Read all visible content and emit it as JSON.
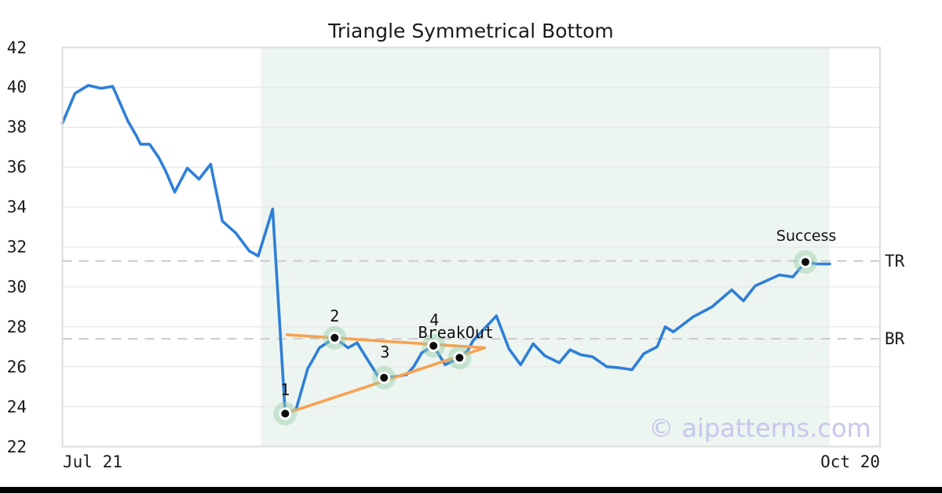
{
  "chart_data": {
    "type": "line",
    "title": "Triangle Symmetrical Bottom",
    "watermark": "© aipatterns.com",
    "x_axis": {
      "start_label": "Jul 21",
      "end_label": "Oct 20",
      "span_days": 91
    },
    "y_axis": {
      "min": 22,
      "max": 42,
      "tick_step": 2,
      "ticks": [
        42,
        40,
        38,
        36,
        34,
        32,
        30,
        28,
        26,
        24,
        22
      ]
    },
    "colors": {
      "price_line": "#2e7fd8",
      "trend_line": "#f6a152",
      "pattern_zone": "#edf5f0",
      "level_dash": "#cdcdcd",
      "grid": "#e8e8e8",
      "border": "#dcdcdc",
      "marker_halo": "rgba(151,206,169,0.45)",
      "marker_dot": "#0d0d0d"
    },
    "pattern_zone": {
      "start_day": 22.1,
      "end_day": 85.4
    },
    "levels": [
      {
        "label": "TR",
        "value": 31.3
      },
      {
        "label": "BR",
        "value": 27.4
      }
    ],
    "trendlines": [
      {
        "from": [
          25.0,
          27.6
        ],
        "to": [
          47.0,
          26.95
        ]
      },
      {
        "from": [
          24.8,
          23.65
        ],
        "to": [
          47.0,
          26.95
        ]
      }
    ],
    "series": [
      {
        "name": "price",
        "points": [
          [
            0,
            38.2
          ],
          [
            1.4,
            39.7
          ],
          [
            2.9,
            40.1
          ],
          [
            4.3,
            39.95
          ],
          [
            5.6,
            40.05
          ],
          [
            7.3,
            38.3
          ],
          [
            8.2,
            37.6
          ],
          [
            8.7,
            37.15
          ],
          [
            9.7,
            37.15
          ],
          [
            10.7,
            36.5
          ],
          [
            11.5,
            35.8
          ],
          [
            12.5,
            34.75
          ],
          [
            13.9,
            35.95
          ],
          [
            15.2,
            35.4
          ],
          [
            16.5,
            36.15
          ],
          [
            17.8,
            33.3
          ],
          [
            19.3,
            32.7
          ],
          [
            20.8,
            31.8
          ],
          [
            21.8,
            31.55
          ],
          [
            23.4,
            33.9
          ],
          [
            24.8,
            23.65
          ],
          [
            26,
            23.85
          ],
          [
            27.3,
            25.9
          ],
          [
            28,
            26.45
          ],
          [
            28.6,
            26.95
          ],
          [
            29.3,
            27.15
          ],
          [
            30.3,
            27.45
          ],
          [
            31.8,
            26.95
          ],
          [
            32.8,
            27.2
          ],
          [
            33.9,
            26.4
          ],
          [
            35.1,
            25.55
          ],
          [
            35.8,
            25.45
          ],
          [
            37,
            25.5
          ],
          [
            38.3,
            25.6
          ],
          [
            39.1,
            26
          ],
          [
            40,
            26.7
          ],
          [
            41.3,
            27.05
          ],
          [
            42.6,
            26.1
          ],
          [
            44.2,
            26.45
          ],
          [
            45.1,
            26.8
          ],
          [
            45.7,
            27.3
          ],
          [
            48.3,
            28.55
          ],
          [
            49.7,
            26.9
          ],
          [
            51,
            26.1
          ],
          [
            52.4,
            27.15
          ],
          [
            53.7,
            26.55
          ],
          [
            55.3,
            26.2
          ],
          [
            56.5,
            26.85
          ],
          [
            57.7,
            26.6
          ],
          [
            59,
            26.5
          ],
          [
            60.6,
            26
          ],
          [
            61.9,
            25.95
          ],
          [
            63.4,
            25.85
          ],
          [
            64.7,
            26.65
          ],
          [
            66.2,
            27
          ],
          [
            67.1,
            28
          ],
          [
            68,
            27.75
          ],
          [
            70.2,
            28.5
          ],
          [
            72.3,
            29
          ],
          [
            74.5,
            29.85
          ],
          [
            75.8,
            29.3
          ],
          [
            77.1,
            30.05
          ],
          [
            79.8,
            30.6
          ],
          [
            81.3,
            30.5
          ],
          [
            82.7,
            31.25
          ],
          [
            84,
            31.15
          ],
          [
            85.4,
            31.15
          ]
        ]
      }
    ],
    "annotations": [
      {
        "label": "1",
        "day": 24.8,
        "value": 23.65,
        "label_day": 24.8,
        "label_value": 24.85
      },
      {
        "label": "2",
        "day": 30.3,
        "value": 27.45,
        "label_day": 30.3,
        "label_value": 28.55
      },
      {
        "label": "3",
        "day": 35.8,
        "value": 25.45,
        "label_day": 35.9,
        "label_value": 26.75
      },
      {
        "label": "4",
        "day": 41.3,
        "value": 27.05,
        "label_day": 41.4,
        "label_value": 28.35
      },
      {
        "label": "BreakOut",
        "day": 44.2,
        "value": 26.45,
        "label_day": 43.8,
        "label_value": 27.7
      },
      {
        "label": "Success",
        "day": 82.7,
        "value": 31.25,
        "label_day": 82.8,
        "label_value": 32.55,
        "style": "sans"
      }
    ]
  }
}
